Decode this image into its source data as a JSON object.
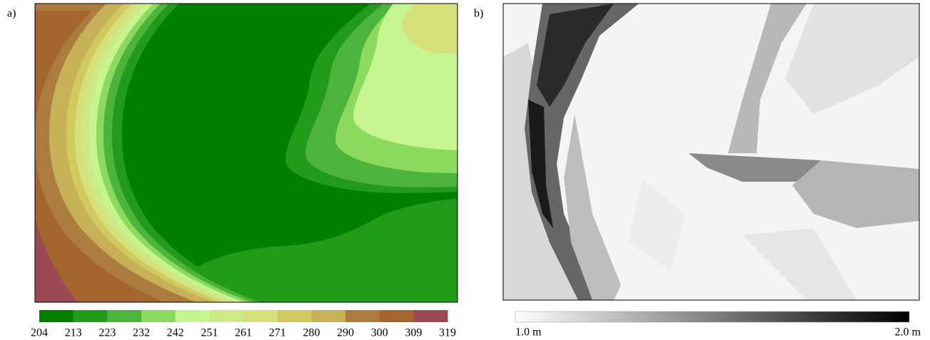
{
  "panels": [
    {
      "label": "a)",
      "legend": {
        "colors": [
          "#007f00",
          "#229a1a",
          "#4db43b",
          "#8bd95e",
          "#c6f590",
          "#cbea85",
          "#d5e07a",
          "#cfc95f",
          "#c7b158",
          "#ab7c3e",
          "#a5652f",
          "#9b4a55"
        ],
        "ticks": [
          "204",
          "213",
          "223",
          "232",
          "242",
          "251",
          "261",
          "271",
          "280",
          "290",
          "300",
          "309",
          "319"
        ]
      }
    },
    {
      "label": "b)",
      "legend": {
        "ticks": [
          "1.0 m",
          "2.0 m"
        ]
      }
    }
  ]
}
